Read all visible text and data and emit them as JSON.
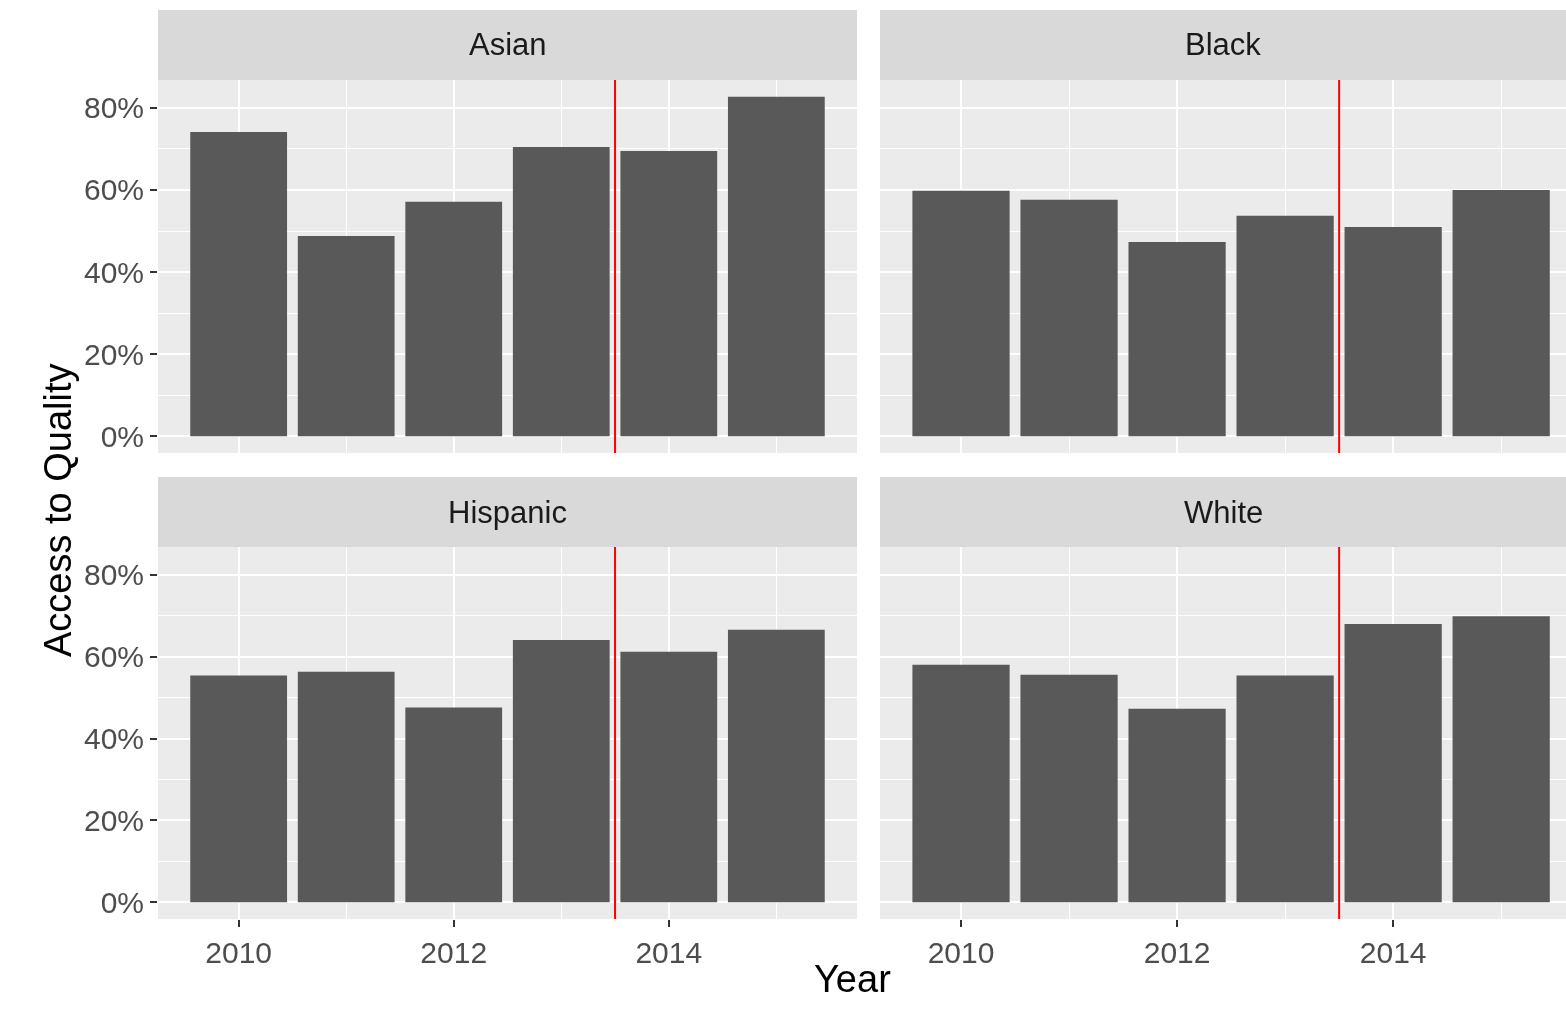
{
  "chart_data": [
    {
      "type": "bar",
      "title": "Asian",
      "ylabel": "Access to Quality",
      "x": [
        2010,
        2011,
        2012,
        2013,
        2014,
        2015
      ],
      "values": [
        74.1,
        48.8,
        57.1,
        70.5,
        69.5,
        82.7
      ],
      "color": "#595959",
      "xlim": [
        2009.25,
        2015.75
      ],
      "xticks": [
        2010,
        2012,
        2014
      ],
      "ylim": [
        -4.1,
        86.8
      ],
      "yticks": [
        {
          "value": 0,
          "label": "0%"
        },
        {
          "value": 20,
          "label": "20%"
        },
        {
          "value": 40,
          "label": "40%"
        },
        {
          "value": 60,
          "label": "60%"
        },
        {
          "value": 80,
          "label": "80%"
        }
      ],
      "grid": true,
      "tick_labels": "y",
      "ref_lines": [
        {
          "axis": "x",
          "value": 2013.5,
          "color": "#ff0000"
        }
      ]
    },
    {
      "type": "bar",
      "title": "Black",
      "x": [
        2010,
        2011,
        2012,
        2013,
        2014,
        2015
      ],
      "values": [
        59.8,
        57.6,
        47.3,
        53.7,
        51.0,
        60.0
      ],
      "color": "#595959",
      "xlim": [
        2009.25,
        2015.6
      ],
      "xticks": [
        2010,
        2012,
        2014
      ],
      "ylim": [
        -4.1,
        86.8
      ],
      "yticks": [
        {
          "value": 0,
          "label": null
        },
        {
          "value": 20,
          "label": null
        },
        {
          "value": 40,
          "label": null
        },
        {
          "value": 60,
          "label": null
        },
        {
          "value": 80,
          "label": null
        }
      ],
      "grid": true,
      "tick_labels": false,
      "ref_lines": [
        {
          "axis": "x",
          "value": 2013.5,
          "color": "#ff0000"
        }
      ]
    },
    {
      "type": "bar",
      "title": "Hispanic",
      "xlabel": "Year",
      "x": [
        2010,
        2011,
        2012,
        2013,
        2014,
        2015
      ],
      "values": [
        55.4,
        56.3,
        47.6,
        64.1,
        61.2,
        66.6
      ],
      "color": "#595959",
      "xlim": [
        2009.25,
        2015.75
      ],
      "xticks": [
        2010,
        2012,
        2014
      ],
      "ylim": [
        -4.1,
        86.8
      ],
      "yticks": [
        {
          "value": 0,
          "label": "0%"
        },
        {
          "value": 20,
          "label": "20%"
        },
        {
          "value": 40,
          "label": "40%"
        },
        {
          "value": 60,
          "label": "60%"
        },
        {
          "value": 80,
          "label": "80%"
        }
      ],
      "grid": true,
      "ref_lines": [
        {
          "axis": "x",
          "value": 2013.5,
          "color": "#ff0000"
        }
      ]
    },
    {
      "type": "bar",
      "title": "White",
      "x": [
        2010,
        2011,
        2012,
        2013,
        2014,
        2015
      ],
      "values": [
        58.0,
        55.6,
        47.3,
        55.4,
        68.0,
        69.9
      ],
      "color": "#595959",
      "xlim": [
        2009.25,
        2015.6
      ],
      "xticks": [
        2010,
        2012,
        2014
      ],
      "ylim": [
        -4.1,
        86.8
      ],
      "yticks": [
        {
          "value": 0,
          "label": null
        },
        {
          "value": 20,
          "label": null
        },
        {
          "value": 40,
          "label": null
        },
        {
          "value": 60,
          "label": null
        },
        {
          "value": 80,
          "label": null
        }
      ],
      "grid": true,
      "tick_labels": "x",
      "ref_lines": [
        {
          "axis": "x",
          "value": 2013.5,
          "color": "#ff0000"
        }
      ]
    }
  ]
}
